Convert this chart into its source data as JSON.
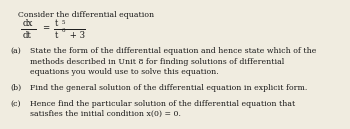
{
  "bg_color": "#f0ece0",
  "text_color": "#1a1a1a",
  "title_line": "Consider the differential equation",
  "part_a_label": "(a)",
  "part_a_text1": "State the form of the differential equation and hence state which of the",
  "part_a_text2": "methods described in Unit 8 for finding solutions of differential",
  "part_a_text3": "equations you would use to solve this equation.",
  "part_b_label": "(b)",
  "part_b_text": "Find the general solution of the differential equation in explicit form.",
  "part_c_label": "(c)",
  "part_c_text1": "Hence find the particular solution of the differential equation that",
  "part_c_text2": "satisfies the initial condition x(0) = 0.",
  "fs_main": 5.6,
  "fs_eq": 6.2,
  "fs_super": 4.0
}
